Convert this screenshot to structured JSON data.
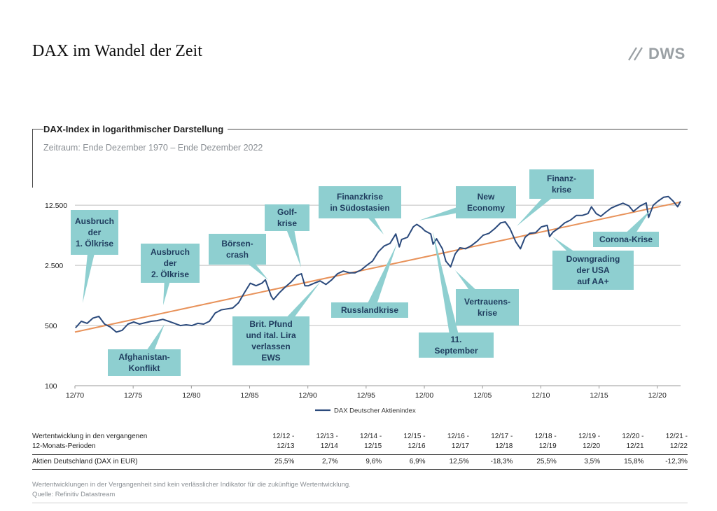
{
  "page": {
    "title": "DAX im Wandel der Zeit",
    "logo_text": "DWS"
  },
  "chart_data": {
    "type": "line",
    "title": "DAX-Index in logarithmischer Darstellung",
    "subtitle": "Zeitraum: Ende Dezember 1970 – Ende Dezember 2022",
    "y_scale": "log",
    "ylim": [
      100,
      16000
    ],
    "xlim": [
      1970.95,
      2022.95
    ],
    "y_ticks": [
      {
        "value": 100,
        "label": "100"
      },
      {
        "value": 500,
        "label": "500"
      },
      {
        "value": 2500,
        "label": "2.500"
      },
      {
        "value": 12500,
        "label": "12.500"
      }
    ],
    "x_ticks": [
      {
        "value": 1970.95,
        "label": "12/70"
      },
      {
        "value": 1975.95,
        "label": "12/75"
      },
      {
        "value": 1980.95,
        "label": "12/80"
      },
      {
        "value": 1985.95,
        "label": "12/85"
      },
      {
        "value": 1990.95,
        "label": "12/90"
      },
      {
        "value": 1995.95,
        "label": "12/95"
      },
      {
        "value": 2000.95,
        "label": "12/00"
      },
      {
        "value": 2005.95,
        "label": "12/05"
      },
      {
        "value": 2010.95,
        "label": "12/10"
      },
      {
        "value": 2015.95,
        "label": "12/15"
      },
      {
        "value": 2020.95,
        "label": "12/20"
      }
    ],
    "grid": true,
    "legend": "bottom-center",
    "series": [
      {
        "name": "DAX Deutscher Aktienindex",
        "color": "#2b4a7c",
        "points": [
          [
            1971.0,
            470
          ],
          [
            1971.5,
            560
          ],
          [
            1972.0,
            530
          ],
          [
            1972.5,
            610
          ],
          [
            1973.0,
            640
          ],
          [
            1973.5,
            520
          ],
          [
            1974.0,
            480
          ],
          [
            1974.5,
            420
          ],
          [
            1975.0,
            440
          ],
          [
            1975.5,
            520
          ],
          [
            1976.0,
            550
          ],
          [
            1976.5,
            520
          ],
          [
            1977.0,
            540
          ],
          [
            1977.5,
            560
          ],
          [
            1978.0,
            570
          ],
          [
            1978.5,
            590
          ],
          [
            1979.0,
            560
          ],
          [
            1979.5,
            530
          ],
          [
            1980.0,
            500
          ],
          [
            1980.5,
            510
          ],
          [
            1981.0,
            500
          ],
          [
            1981.5,
            530
          ],
          [
            1982.0,
            520
          ],
          [
            1982.5,
            560
          ],
          [
            1983.0,
            700
          ],
          [
            1983.5,
            760
          ],
          [
            1984.0,
            780
          ],
          [
            1984.5,
            800
          ],
          [
            1985.0,
            920
          ],
          [
            1985.5,
            1200
          ],
          [
            1986.0,
            1550
          ],
          [
            1986.5,
            1450
          ],
          [
            1987.0,
            1550
          ],
          [
            1987.3,
            1700
          ],
          [
            1987.8,
            1100
          ],
          [
            1988.0,
            1000
          ],
          [
            1988.5,
            1200
          ],
          [
            1989.0,
            1400
          ],
          [
            1989.5,
            1600
          ],
          [
            1990.0,
            1900
          ],
          [
            1990.4,
            2000
          ],
          [
            1990.7,
            1450
          ],
          [
            1991.0,
            1450
          ],
          [
            1991.5,
            1550
          ],
          [
            1992.0,
            1650
          ],
          [
            1992.5,
            1500
          ],
          [
            1993.0,
            1700
          ],
          [
            1993.5,
            2000
          ],
          [
            1994.0,
            2150
          ],
          [
            1994.5,
            2050
          ],
          [
            1995.0,
            2050
          ],
          [
            1995.5,
            2200
          ],
          [
            1996.0,
            2500
          ],
          [
            1996.5,
            2800
          ],
          [
            1997.0,
            3600
          ],
          [
            1997.5,
            4200
          ],
          [
            1998.0,
            4500
          ],
          [
            1998.5,
            5800
          ],
          [
            1998.8,
            4100
          ],
          [
            1999.0,
            5000
          ],
          [
            1999.5,
            5300
          ],
          [
            2000.0,
            7000
          ],
          [
            2000.3,
            7500
          ],
          [
            2000.7,
            6900
          ],
          [
            2001.0,
            6300
          ],
          [
            2001.5,
            5800
          ],
          [
            2001.7,
            4400
          ],
          [
            2002.0,
            5100
          ],
          [
            2002.5,
            3900
          ],
          [
            2002.8,
            2800
          ],
          [
            2003.2,
            2400
          ],
          [
            2003.6,
            3400
          ],
          [
            2004.0,
            4000
          ],
          [
            2004.5,
            3900
          ],
          [
            2005.0,
            4250
          ],
          [
            2005.5,
            4800
          ],
          [
            2006.0,
            5600
          ],
          [
            2006.5,
            5900
          ],
          [
            2007.0,
            6700
          ],
          [
            2007.5,
            7800
          ],
          [
            2007.9,
            8000
          ],
          [
            2008.3,
            6700
          ],
          [
            2008.8,
            4700
          ],
          [
            2009.2,
            3900
          ],
          [
            2009.6,
            5300
          ],
          [
            2010.0,
            5900
          ],
          [
            2010.5,
            6000
          ],
          [
            2011.0,
            7000
          ],
          [
            2011.5,
            7300
          ],
          [
            2011.7,
            5400
          ],
          [
            2012.0,
            6100
          ],
          [
            2012.5,
            6800
          ],
          [
            2013.0,
            7800
          ],
          [
            2013.5,
            8400
          ],
          [
            2014.0,
            9500
          ],
          [
            2014.5,
            9500
          ],
          [
            2015.0,
            10000
          ],
          [
            2015.3,
            12000
          ],
          [
            2015.7,
            10000
          ],
          [
            2016.1,
            9300
          ],
          [
            2016.5,
            10300
          ],
          [
            2017.0,
            11600
          ],
          [
            2017.5,
            12400
          ],
          [
            2018.0,
            13200
          ],
          [
            2018.5,
            12300
          ],
          [
            2018.9,
            10600
          ],
          [
            2019.5,
            12300
          ],
          [
            2020.0,
            13300
          ],
          [
            2020.2,
            9000
          ],
          [
            2020.6,
            12500
          ],
          [
            2021.0,
            13900
          ],
          [
            2021.5,
            15500
          ],
          [
            2021.9,
            15800
          ],
          [
            2022.3,
            14000
          ],
          [
            2022.7,
            12000
          ],
          [
            2022.95,
            13900
          ]
        ]
      },
      {
        "name": "Trend",
        "color": "#e8925a",
        "points": [
          [
            1970.95,
            420
          ],
          [
            2022.95,
            13600
          ]
        ]
      }
    ],
    "annotations": [
      {
        "text": "Ausbruch\nder\n1. Ölkrise",
        "x": 1973.0,
        "y": 650
      },
      {
        "text": "Afghanistan-\nKonflikt",
        "x": 1977.7,
        "y": 560
      },
      {
        "text": "Ausbruch\nder\n2. Ölkrise",
        "x": 1979.0,
        "y": 560
      },
      {
        "text": "Börsen-\ncrash",
        "x": 1987.3,
        "y": 1700
      },
      {
        "text": "Brit. Pfund\nund ital. Lira\nverlassen\nEWS",
        "x": 1992.7,
        "y": 1600
      },
      {
        "text": "Golf-\nkrise",
        "x": 1990.3,
        "y": 1900
      },
      {
        "text": "Russlandkrise",
        "x": 1998.6,
        "y": 4300
      },
      {
        "text": "Finanzkrise\nin Südostasien",
        "x": 1997.5,
        "y": 4200
      },
      {
        "text": "New\nEconomy",
        "x": 2000.1,
        "y": 7000
      },
      {
        "text": "11.\nSeptember",
        "x": 2001.7,
        "y": 4400
      },
      {
        "text": "Vertrauens-\nkrise",
        "x": 2002.9,
        "y": 2700
      },
      {
        "text": "Finanz-\nkrise",
        "x": 2007.9,
        "y": 7900
      },
      {
        "text": "Downgrading\nder USA\nauf AA+",
        "x": 2011.6,
        "y": 5400
      },
      {
        "text": "Corona-Krise",
        "x": 2020.2,
        "y": 9000
      }
    ]
  },
  "performance_table": {
    "header_label_line1": "Wertentwicklung in den vergangenen",
    "header_label_line2": "12-Monats-Perioden",
    "periods": [
      {
        "line1": "12/12 -",
        "line2": "12/13"
      },
      {
        "line1": "12/13 -",
        "line2": "12/14"
      },
      {
        "line1": "12/14 -",
        "line2": "12/15"
      },
      {
        "line1": "12/15 -",
        "line2": "12/16"
      },
      {
        "line1": "12/16 -",
        "line2": "12/17"
      },
      {
        "line1": "12/17 -",
        "line2": "12/18"
      },
      {
        "line1": "12/18 -",
        "line2": "12/19"
      },
      {
        "line1": "12/19 -",
        "line2": "12/20"
      },
      {
        "line1": "12/20 -",
        "line2": "12/21"
      },
      {
        "line1": "12/21 -",
        "line2": "12/22"
      }
    ],
    "row_label": "Aktien Deutschland (DAX in EUR)",
    "values": [
      "25,5%",
      "2,7%",
      "9,6%",
      "6,9%",
      "12,5%",
      "-18,3%",
      "25,5%",
      "3,5%",
      "15,8%",
      "-12,3%"
    ]
  },
  "footer": {
    "disclaimer": "Wertentwicklungen in der Vergangenheit sind kein verlässlicher Indikator für die zukünftige Wertentwicklung.",
    "source": "Quelle: Refinitiv Datastream"
  },
  "colors": {
    "line": "#2b4a7c",
    "trend": "#e8925a",
    "callout": "#8ecfd0",
    "callout_text": "#1f3c5e",
    "grid": "#bfbfbf",
    "logo": "#9aa0a4"
  }
}
